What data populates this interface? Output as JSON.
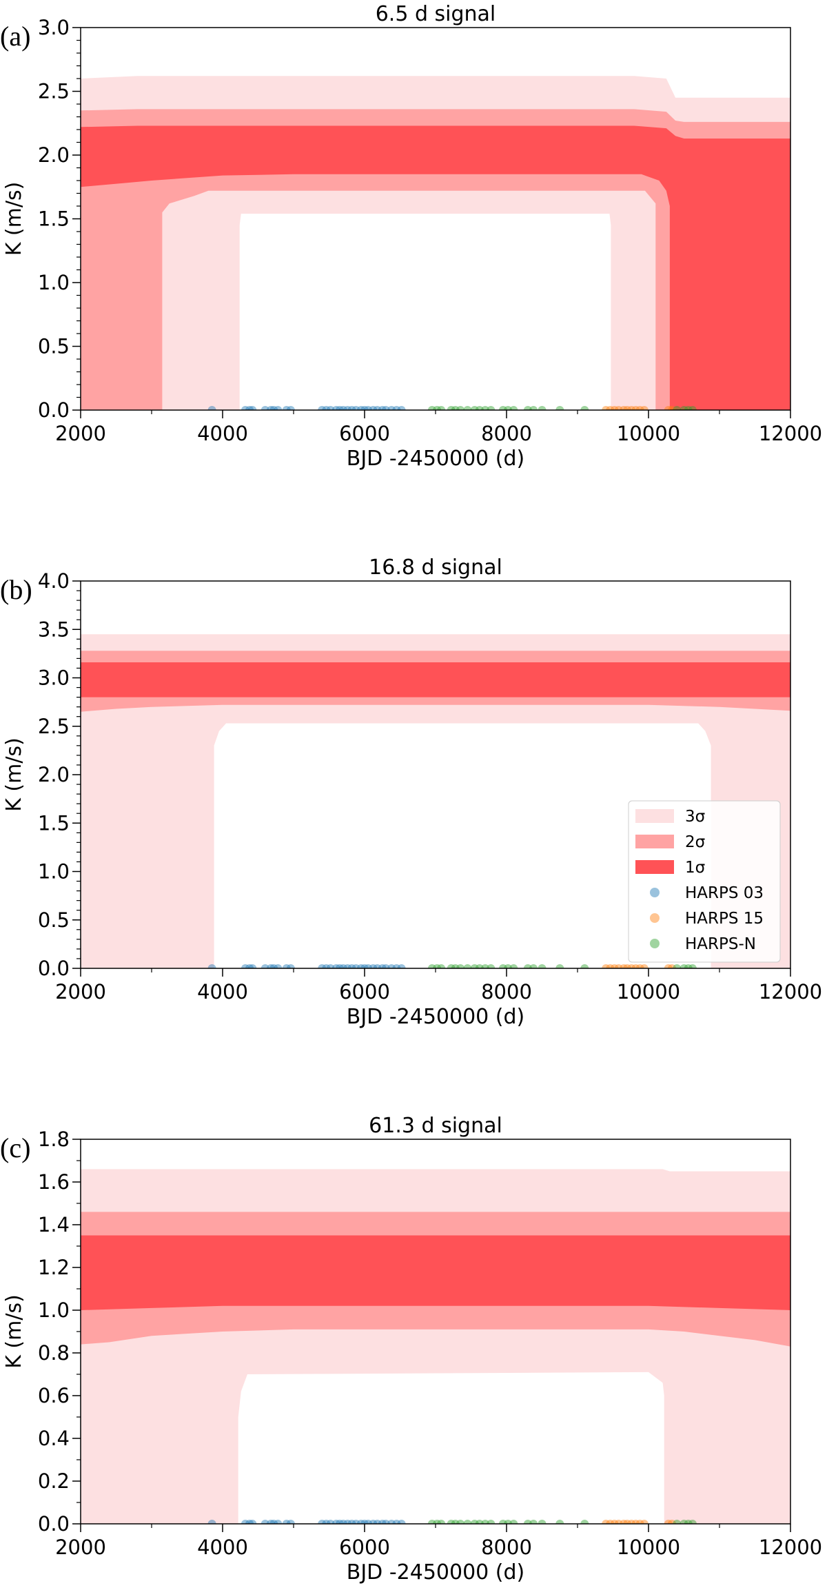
{
  "chart_data": [
    {
      "type": "area",
      "panel_label": "(a)",
      "title": "6.5 d signal",
      "xlabel": "BJD -2450000 (d)",
      "ylabel": "K (m/s)",
      "xlim": [
        2000,
        12000
      ],
      "ylim": [
        0,
        3.0
      ],
      "xticks": [
        2000,
        4000,
        6000,
        8000,
        10000,
        12000
      ],
      "xtick_labels": [
        "2000",
        "4000",
        "6000",
        "8000",
        "10000",
        "12000"
      ],
      "yticks": [
        0,
        0.5,
        1.0,
        1.5,
        2.0,
        2.5,
        3.0
      ],
      "ytick_labels": [
        "0.0",
        "0.5",
        "1.0",
        "1.5",
        "2.0",
        "2.5",
        "3.0"
      ],
      "minor_ytick_step": 0.1,
      "grid": false,
      "bands": [
        {
          "name": "3σ",
          "color": "#fde0e1",
          "upper": {
            "x": [
              2000,
              2800,
              9800,
              10250,
              10380,
              10500,
              12000
            ],
            "y": [
              2.6,
              2.62,
              2.62,
              2.6,
              2.45,
              2.45,
              2.45
            ]
          },
          "lower": {
            "x": [
              2000,
              4240,
              4240,
              4260,
              9450,
              9470,
              9470,
              12000
            ],
            "y": [
              0,
              0,
              1.45,
              1.54,
              1.54,
              1.45,
              0,
              0
            ]
          }
        },
        {
          "name": "2σ",
          "color": "#ffa3a3",
          "upper": {
            "x": [
              2000,
              2800,
              9800,
              10250,
              10380,
              10500,
              12000
            ],
            "y": [
              2.35,
              2.36,
              2.36,
              2.34,
              2.27,
              2.26,
              2.26
            ]
          },
          "lower": {
            "x": [
              2000,
              3150,
              3150,
              3250,
              3600,
              3800,
              9950,
              10100,
              10100,
              12000
            ],
            "y": [
              0,
              0,
              1.55,
              1.62,
              1.68,
              1.72,
              1.72,
              1.62,
              0,
              0
            ]
          }
        },
        {
          "name": "1σ",
          "color": "#ff5256",
          "upper": {
            "x": [
              2000,
              2800,
              9800,
              10250,
              10380,
              10500,
              12000
            ],
            "y": [
              2.22,
              2.23,
              2.23,
              2.21,
              2.15,
              2.13,
              2.13
            ]
          },
          "lower": {
            "x": [
              2000,
              2600,
              3000,
              3500,
              4000,
              5000,
              9900,
              10150,
              10250,
              10300,
              10300,
              12000
            ],
            "y": [
              1.75,
              1.78,
              1.8,
              1.82,
              1.84,
              1.85,
              1.85,
              1.8,
              1.72,
              1.6,
              0,
              0
            ]
          }
        }
      ],
      "observations": [
        {
          "name": "HARPS 03",
          "color": "#1f77b4",
          "x": [
            3850,
            4320,
            4380,
            4420,
            4600,
            4680,
            4720,
            4780,
            4900,
            4960,
            5400,
            5460,
            5520,
            5600,
            5650,
            5700,
            5760,
            5820,
            5880,
            5950,
            6000,
            6050,
            6120,
            6180,
            6250,
            6300,
            6380,
            6450,
            6520
          ]
        },
        {
          "name": "HARPS 15",
          "color": "#ff7f0e",
          "x": [
            9400,
            9460,
            9520,
            9580,
            9650,
            9700,
            9760,
            9820,
            9880,
            9940,
            10280,
            10330
          ]
        },
        {
          "name": "HARPS-N",
          "color": "#2ca02c",
          "x": [
            6950,
            7020,
            7080,
            7220,
            7280,
            7350,
            7450,
            7550,
            7620,
            7700,
            7780,
            7950,
            8020,
            8100,
            8300,
            8380,
            8500,
            8750,
            9100,
            10400,
            10500,
            10560,
            10620
          ]
        }
      ]
    },
    {
      "type": "area",
      "panel_label": "(b)",
      "title": "16.8 d signal",
      "xlabel": "BJD -2450000 (d)",
      "ylabel": "K (m/s)",
      "xlim": [
        2000,
        12000
      ],
      "ylim": [
        0,
        4.0
      ],
      "xticks": [
        2000,
        4000,
        6000,
        8000,
        10000,
        12000
      ],
      "xtick_labels": [
        "2000",
        "4000",
        "6000",
        "8000",
        "10000",
        "12000"
      ],
      "yticks": [
        0,
        0.5,
        1.0,
        1.5,
        2.0,
        2.5,
        3.0,
        3.5,
        4.0
      ],
      "ytick_labels": [
        "0.0",
        "0.5",
        "1.0",
        "1.5",
        "2.0",
        "2.5",
        "3.0",
        "3.5",
        "4.0"
      ],
      "minor_ytick_step": 0.1,
      "grid": false,
      "legend_position": "center-right",
      "legend": [
        "3σ",
        "2σ",
        "1σ",
        "HARPS 03",
        "HARPS 15",
        "HARPS-N"
      ],
      "bands": [
        {
          "name": "3σ",
          "color": "#fde0e1",
          "upper": {
            "x": [
              2000,
              12000
            ],
            "y": [
              3.45,
              3.45
            ]
          },
          "lower": {
            "x": [
              2000,
              3880,
              3880,
              3950,
              4050,
              10700,
              10800,
              10880,
              10880,
              12000
            ],
            "y": [
              0,
              0,
              2.3,
              2.45,
              2.53,
              2.53,
              2.45,
              2.3,
              0,
              0
            ]
          }
        },
        {
          "name": "2σ",
          "color": "#ffa3a3",
          "upper": {
            "x": [
              2000,
              12000
            ],
            "y": [
              3.28,
              3.28
            ]
          },
          "lower": {
            "x": [
              2000,
              2500,
              3000,
              4000,
              10000,
              11000,
              12000
            ],
            "y": [
              2.65,
              2.68,
              2.7,
              2.72,
              2.72,
              2.7,
              2.66
            ]
          }
        },
        {
          "name": "1σ",
          "color": "#ff5256",
          "upper": {
            "x": [
              2000,
              12000
            ],
            "y": [
              3.16,
              3.16
            ]
          },
          "lower": {
            "x": [
              2000,
              12000
            ],
            "y": [
              2.8,
              2.8
            ]
          }
        }
      ],
      "observations": [
        {
          "name": "HARPS 03",
          "color": "#1f77b4",
          "x": [
            3850,
            4320,
            4380,
            4420,
            4600,
            4680,
            4720,
            4780,
            4900,
            4960,
            5400,
            5460,
            5520,
            5600,
            5650,
            5700,
            5760,
            5820,
            5880,
            5950,
            6000,
            6050,
            6120,
            6180,
            6250,
            6300,
            6380,
            6450,
            6520
          ]
        },
        {
          "name": "HARPS 15",
          "color": "#ff7f0e",
          "x": [
            9400,
            9460,
            9520,
            9580,
            9650,
            9700,
            9760,
            9820,
            9880,
            9940,
            10280,
            10330
          ]
        },
        {
          "name": "HARPS-N",
          "color": "#2ca02c",
          "x": [
            6950,
            7020,
            7080,
            7220,
            7280,
            7350,
            7450,
            7550,
            7620,
            7700,
            7780,
            7950,
            8020,
            8100,
            8300,
            8380,
            8500,
            8750,
            9100,
            10400,
            10500,
            10560,
            10620
          ]
        }
      ]
    },
    {
      "type": "area",
      "panel_label": "(c)",
      "title": "61.3 d signal",
      "xlabel": "BJD -2450000 (d)",
      "ylabel": "K (m/s)",
      "xlim": [
        2000,
        12000
      ],
      "ylim": [
        0,
        1.8
      ],
      "xticks": [
        2000,
        4000,
        6000,
        8000,
        10000,
        12000
      ],
      "xtick_labels": [
        "2000",
        "4000",
        "6000",
        "8000",
        "10000",
        "12000"
      ],
      "yticks": [
        0,
        0.2,
        0.4,
        0.6,
        0.8,
        1.0,
        1.2,
        1.4,
        1.6,
        1.8
      ],
      "ytick_labels": [
        "0.0",
        "0.2",
        "0.4",
        "0.6",
        "0.8",
        "1.0",
        "1.2",
        "1.4",
        "1.6",
        "1.8"
      ],
      "minor_ytick_step": 0.1,
      "grid": false,
      "bands": [
        {
          "name": "3σ",
          "color": "#fde0e1",
          "upper": {
            "x": [
              2000,
              10200,
              10300,
              12000
            ],
            "y": [
              1.66,
              1.66,
              1.65,
              1.65
            ]
          },
          "lower": {
            "x": [
              2000,
              4220,
              4220,
              4260,
              4350,
              10000,
              10200,
              10220,
              10220,
              12000
            ],
            "y": [
              0,
              0,
              0.5,
              0.62,
              0.7,
              0.71,
              0.66,
              0.6,
              0,
              0
            ]
          }
        },
        {
          "name": "2σ",
          "color": "#ffa3a3",
          "upper": {
            "x": [
              2000,
              12000
            ],
            "y": [
              1.46,
              1.46
            ]
          },
          "lower": {
            "x": [
              2000,
              2400,
              3000,
              4000,
              5000,
              10000,
              10500,
              11000,
              11500,
              12000
            ],
            "y": [
              0.84,
              0.85,
              0.88,
              0.9,
              0.91,
              0.91,
              0.9,
              0.88,
              0.86,
              0.83
            ]
          }
        },
        {
          "name": "1σ",
          "color": "#ff5256",
          "upper": {
            "x": [
              2000,
              12000
            ],
            "y": [
              1.35,
              1.35
            ]
          },
          "lower": {
            "x": [
              2000,
              3000,
              4000,
              6000,
              10000,
              11000,
              12000
            ],
            "y": [
              1.0,
              1.01,
              1.02,
              1.02,
              1.02,
              1.01,
              1.0
            ]
          }
        }
      ],
      "observations": [
        {
          "name": "HARPS 03",
          "color": "#1f77b4",
          "x": [
            3850,
            4320,
            4380,
            4420,
            4600,
            4680,
            4720,
            4780,
            4900,
            4960,
            5400,
            5460,
            5520,
            5600,
            5650,
            5700,
            5760,
            5820,
            5880,
            5950,
            6000,
            6050,
            6120,
            6180,
            6250,
            6300,
            6380,
            6450,
            6520
          ]
        },
        {
          "name": "HARPS 15",
          "color": "#ff7f0e",
          "x": [
            9400,
            9460,
            9520,
            9580,
            9650,
            9700,
            9760,
            9820,
            9880,
            9940,
            10280,
            10330
          ]
        },
        {
          "name": "HARPS-N",
          "color": "#2ca02c",
          "x": [
            6950,
            7020,
            7080,
            7220,
            7280,
            7350,
            7450,
            7550,
            7620,
            7700,
            7780,
            7950,
            8020,
            8100,
            8300,
            8380,
            8500,
            8750,
            9100,
            10400,
            10500,
            10560,
            10620
          ]
        }
      ]
    }
  ]
}
